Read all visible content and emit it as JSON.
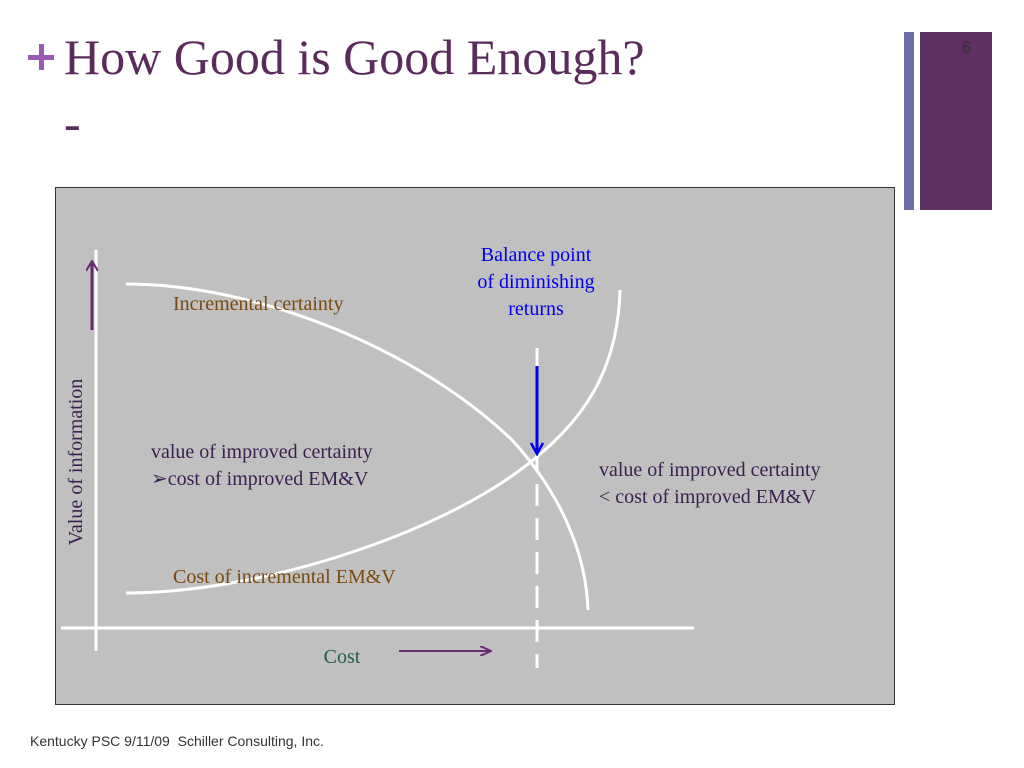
{
  "slide": {
    "title": "How Good is Good Enough?",
    "subtitle": "-",
    "number": "6",
    "footer": "Kentucky PSC 9/11/09  Schiller Consulting, Inc."
  },
  "diagram": {
    "y_axis_label": "Value of information",
    "x_axis_label": "Cost",
    "curve_incremental_certainty": "Incremental certainty",
    "curve_cost_incremental": "Cost of incremental EM&V",
    "balance_point": [
      "Balance point",
      "of diminishing",
      "returns"
    ],
    "left_region": [
      "value of improved certainty",
      "➢cost of improved EM&V"
    ],
    "right_region": [
      "value of improved certainty",
      "< cost of improved EM&V"
    ]
  },
  "colors": {
    "title": "#5b2b5c",
    "plus_accent": "#9b59b6",
    "bar_thin": "#6c6fa6",
    "bar_wide": "#5f2f63",
    "diagram_bg": "#c0c0c0",
    "label_brown": "#7a4a10",
    "label_blue": "#0000ee",
    "label_dark": "#3a1f50",
    "label_green": "#1f5c4a",
    "arrow_purple": "#6a2c70",
    "curve_white": "#ffffff"
  }
}
